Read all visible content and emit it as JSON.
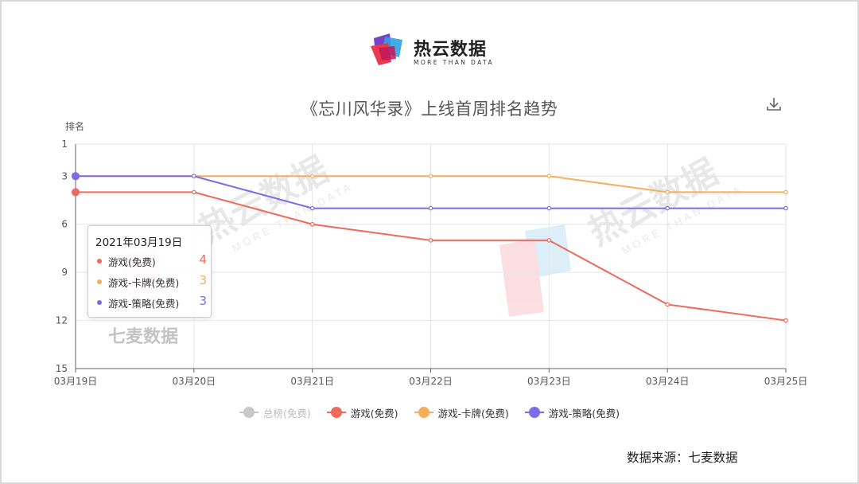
{
  "brand": {
    "name": "热云数据",
    "tagline": "MORE THAN DATA"
  },
  "title": "《忘川风华录》上线首周排名趋势",
  "source": "数据来源：七麦数据",
  "watermarks": {
    "wm1": "热云数据",
    "wm1_sub": "MORE THAN DATA",
    "wm2": "热云数据",
    "wm2_sub": "MORE THAN DATA",
    "wm3": "七麦数据"
  },
  "tooltip": {
    "title": "2021年03月19日",
    "rows": [
      {
        "name": "游戏(免费)",
        "value": "4",
        "color": "#ee6a5b"
      },
      {
        "name": "游戏-卡牌(免费)",
        "value": "3",
        "color": "#f6ae59"
      },
      {
        "name": "游戏-策略(免费)",
        "value": "3",
        "color": "#7b6ce8"
      }
    ]
  },
  "legend": [
    {
      "name": "总榜(免费)",
      "color": "#c8c8c8",
      "off": true
    },
    {
      "name": "游戏(免费)",
      "color": "#ee6a5b",
      "off": false
    },
    {
      "name": "游戏-卡牌(免费)",
      "color": "#f6ae59",
      "off": false
    },
    {
      "name": "游戏-策略(免费)",
      "color": "#7b6ce8",
      "off": false
    }
  ],
  "chart_data": {
    "type": "line",
    "ylabel": "排名",
    "y_inverted": true,
    "ylim": [
      1,
      15
    ],
    "yticks": [
      1,
      3,
      6,
      9,
      12,
      15
    ],
    "categories": [
      "03月19日",
      "03月20日",
      "03月21日",
      "03月22日",
      "03月23日",
      "03月24日",
      "03月25日"
    ],
    "grid": true,
    "legend_position": "bottom",
    "series": [
      {
        "name": "游戏(免费)",
        "color": "#ee6a5b",
        "values": [
          4,
          4,
          6,
          7,
          7,
          11,
          12
        ]
      },
      {
        "name": "游戏-卡牌(免费)",
        "color": "#f6ae59",
        "values": [
          3,
          3,
          3,
          3,
          3,
          4,
          4
        ]
      },
      {
        "name": "游戏-策略(免费)",
        "color": "#7b6ce8",
        "values": [
          3,
          3,
          5,
          5,
          5,
          5,
          5
        ]
      }
    ]
  }
}
